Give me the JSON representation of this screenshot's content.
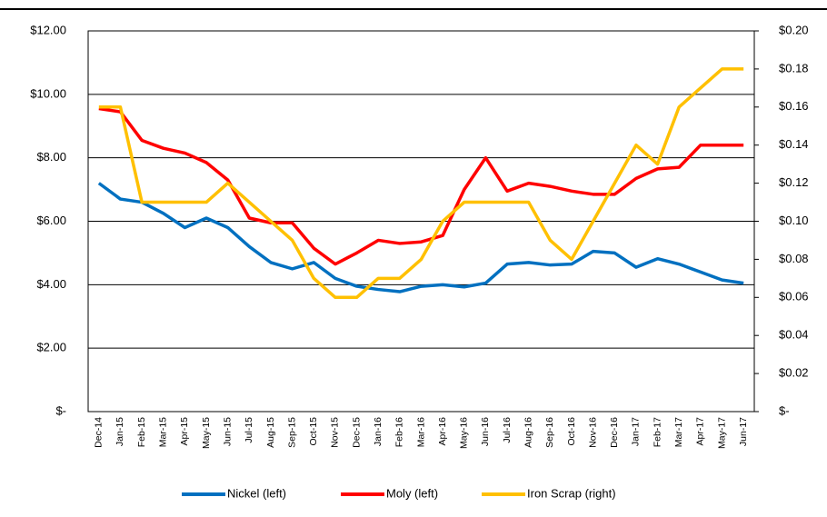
{
  "chart_data": {
    "type": "line",
    "categories": [
      "Dec-14",
      "Jan-15",
      "Feb-15",
      "Mar-15",
      "Apr-15",
      "May-15",
      "Jun-15",
      "Jul-15",
      "Aug-15",
      "Sep-15",
      "Oct-15",
      "Nov-15",
      "Dec-15",
      "Jan-16",
      "Feb-16",
      "Mar-16",
      "Apr-16",
      "May-16",
      "Jun-16",
      "Jul-16",
      "Aug-16",
      "Sep-16",
      "Oct-16",
      "Nov-16",
      "Dec-16",
      "Jan-17",
      "Feb-17",
      "Mar-17",
      "Apr-17",
      "May-17",
      "Jun-17"
    ],
    "series": [
      {
        "name": "Nickel (left)",
        "color": "#0070c0",
        "values": [
          7.2,
          6.7,
          6.6,
          6.25,
          5.8,
          6.1,
          5.8,
          5.2,
          4.7,
          4.5,
          4.7,
          4.2,
          3.95,
          3.85,
          3.78,
          3.95,
          4.0,
          3.93,
          4.05,
          4.65,
          4.7,
          4.62,
          4.65,
          5.05,
          5.0,
          4.55,
          4.82,
          4.65,
          4.4,
          4.15,
          4.05
        ]
      },
      {
        "name": "Moly (left)",
        "color": "#ff0000",
        "values": [
          9.55,
          9.45,
          8.55,
          8.3,
          8.15,
          7.85,
          7.3,
          6.1,
          5.95,
          5.95,
          5.15,
          4.65,
          5.0,
          5.4,
          5.3,
          5.35,
          5.55,
          7.0,
          8.0,
          6.95,
          7.2,
          7.1,
          6.95,
          6.85,
          6.85,
          7.35,
          7.65,
          7.7,
          8.4,
          8.4,
          8.4
        ]
      },
      {
        "name": "Iron Scrap (right)",
        "color": "#ffc000",
        "axis": "y2",
        "values": [
          0.16,
          0.16,
          0.11,
          0.11,
          0.11,
          0.11,
          0.12,
          0.11,
          0.1,
          0.09,
          0.07,
          0.06,
          0.06,
          0.07,
          0.07,
          0.08,
          0.1,
          0.11,
          0.11,
          0.11,
          0.11,
          0.09,
          0.08,
          0.1,
          0.12,
          0.14,
          0.13,
          0.16,
          0.17,
          0.18,
          0.18
        ]
      }
    ],
    "ylim": [
      0,
      12
    ],
    "yticks": [
      {
        "value": 0,
        "label": "$-"
      },
      {
        "value": 2,
        "label": "$2.00"
      },
      {
        "value": 4,
        "label": "$4.00"
      },
      {
        "value": 6,
        "label": "$6.00"
      },
      {
        "value": 8,
        "label": "$8.00"
      },
      {
        "value": 10,
        "label": "$10.00"
      },
      {
        "value": 12,
        "label": "$12.00"
      }
    ],
    "y2lim": [
      0,
      0.2
    ],
    "y2ticks": [
      {
        "value": 0,
        "label": "$-"
      },
      {
        "value": 0.02,
        "label": "$0.02"
      },
      {
        "value": 0.04,
        "label": "$0.04"
      },
      {
        "value": 0.06,
        "label": "$0.06"
      },
      {
        "value": 0.08,
        "label": "$0.08"
      },
      {
        "value": 0.1,
        "label": "$0.10"
      },
      {
        "value": 0.12,
        "label": "$0.12"
      },
      {
        "value": 0.14,
        "label": "$0.14"
      },
      {
        "value": 0.16,
        "label": "$0.16"
      },
      {
        "value": 0.18,
        "label": "$0.18"
      },
      {
        "value": 0.2,
        "label": "$0.20"
      }
    ],
    "grid": true,
    "legend": "bottom"
  }
}
